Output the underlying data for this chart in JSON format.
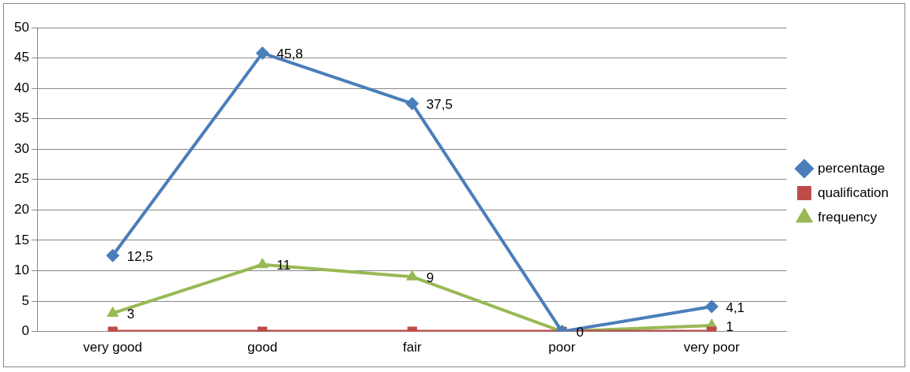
{
  "chart_data": {
    "type": "line",
    "categories": [
      "very good",
      "good",
      "fair",
      "poor",
      "very poor"
    ],
    "series": [
      {
        "name": "percentage",
        "color": "#4a7ebb",
        "marker": "diamond",
        "values": [
          12.5,
          45.8,
          37.5,
          0,
          4.1
        ],
        "value_labels": [
          "12,5",
          "45,8",
          "37,5",
          null,
          "4,1"
        ]
      },
      {
        "name": "qualification",
        "color": "#be4b48",
        "marker": "square",
        "values": [
          0,
          0,
          0,
          0,
          0
        ]
      },
      {
        "name": "frequency",
        "color": "#98b954",
        "marker": "triangle",
        "values": [
          3,
          11,
          9,
          0,
          1
        ],
        "value_labels": [
          "3",
          "11",
          "9",
          "0",
          "1"
        ]
      }
    ],
    "ylim": [
      0,
      50
    ],
    "yticks": [
      0,
      5,
      10,
      15,
      20,
      25,
      30,
      35,
      40,
      45,
      50
    ],
    "grid": "y",
    "legend": "right"
  }
}
